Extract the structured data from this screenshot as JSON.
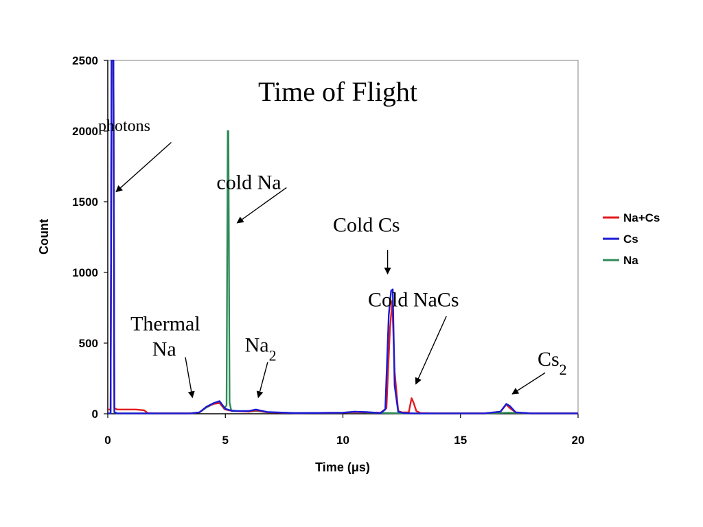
{
  "chart_data": {
    "type": "line",
    "title": "Time of Flight",
    "xlabel": "Time (μs)",
    "ylabel": "Count",
    "xlim": [
      0,
      20
    ],
    "ylim": [
      0,
      2500
    ],
    "xticks": [
      "0",
      "5",
      "10",
      "15",
      "20"
    ],
    "yticks": [
      "0",
      "500",
      "1000",
      "1500",
      "2000",
      "2500"
    ],
    "grid": false,
    "legend_position": "right",
    "series": [
      {
        "name": "Na+Cs",
        "color": "#e41a1c",
        "x": [
          0,
          0.12,
          0.16,
          0.2,
          0.24,
          0.28,
          0.4,
          0.8,
          1.2,
          1.55,
          1.7,
          2.0,
          3.5,
          3.9,
          4.2,
          4.5,
          4.75,
          5.0,
          5.3,
          6.0,
          6.3,
          6.8,
          8.0,
          10.0,
          10.5,
          11.0,
          11.6,
          11.85,
          12.0,
          12.1,
          12.2,
          12.35,
          12.5,
          12.8,
          12.92,
          13.0,
          13.12,
          13.3,
          14.0,
          16.0,
          16.7,
          16.95,
          17.1,
          17.35,
          18.0,
          20.0
        ],
        "values": [
          30,
          30,
          2500,
          2500,
          2500,
          40,
          30,
          30,
          30,
          25,
          5,
          3,
          3,
          10,
          50,
          70,
          75,
          30,
          20,
          15,
          25,
          10,
          5,
          8,
          12,
          10,
          8,
          40,
          600,
          800,
          300,
          20,
          10,
          10,
          110,
          80,
          20,
          5,
          3,
          3,
          15,
          65,
          40,
          10,
          3,
          3
        ]
      },
      {
        "name": "Cs",
        "color": "#1a1ad6",
        "x": [
          0,
          0.12,
          0.16,
          0.2,
          0.24,
          0.28,
          0.4,
          2.0,
          3.5,
          3.9,
          4.2,
          4.5,
          4.75,
          5.0,
          5.3,
          6.0,
          6.3,
          6.8,
          8.0,
          10.0,
          10.5,
          11.0,
          11.6,
          11.8,
          11.95,
          12.05,
          12.12,
          12.2,
          12.35,
          12.6,
          13.0,
          14.0,
          16.0,
          16.7,
          16.95,
          17.1,
          17.35,
          18.0,
          20.0
        ],
        "values": [
          3,
          3,
          2500,
          2500,
          2500,
          10,
          3,
          3,
          3,
          10,
          50,
          75,
          90,
          35,
          20,
          20,
          30,
          12,
          5,
          8,
          15,
          12,
          5,
          30,
          700,
          870,
          880,
          200,
          15,
          5,
          3,
          3,
          3,
          15,
          70,
          55,
          10,
          3,
          3
        ]
      },
      {
        "name": "Na",
        "color": "#2e8b57",
        "x": [
          0,
          0.12,
          0.16,
          0.2,
          0.24,
          0.28,
          0.4,
          2.0,
          3.5,
          3.9,
          4.2,
          4.5,
          4.75,
          4.95,
          5.05,
          5.1,
          5.13,
          5.18,
          5.25,
          5.5,
          6.0,
          6.3,
          6.8,
          8.0,
          10.0,
          10.5,
          11.0,
          12.0,
          13.0,
          16.0,
          17.0,
          18.0,
          20.0
        ],
        "values": [
          3,
          3,
          2500,
          2500,
          2500,
          10,
          3,
          3,
          3,
          10,
          45,
          70,
          80,
          35,
          60,
          2000,
          2000,
          80,
          25,
          20,
          15,
          20,
          10,
          5,
          8,
          15,
          8,
          5,
          3,
          3,
          8,
          3,
          3
        ]
      }
    ],
    "annotations": [
      {
        "text": "photons",
        "x": 0.7,
        "y": 2000
      },
      {
        "text": "cold Na",
        "x": 6.0,
        "y": 1590
      },
      {
        "text": "Cold Cs",
        "x": 11.0,
        "y": 1290
      },
      {
        "text": "Cold NaCs",
        "x": 13.0,
        "y": 760,
        "color": "#e41a1c"
      },
      {
        "text": "Thermal",
        "x": 2.45,
        "y": 590
      },
      {
        "text": "Na",
        "x": 2.4,
        "y": 410
      },
      {
        "text": "Na",
        "sub": "2",
        "x": 6.5,
        "y": 440
      },
      {
        "text": "Cs",
        "sub": "2",
        "x": 18.9,
        "y": 340
      }
    ],
    "arrows": [
      {
        "from": [
          2.7,
          1920
        ],
        "to": [
          0.35,
          1570
        ]
      },
      {
        "from": [
          7.6,
          1600
        ],
        "to": [
          5.5,
          1350
        ]
      },
      {
        "from": [
          11.9,
          1160
        ],
        "to": [
          11.9,
          990
        ]
      },
      {
        "from": [
          14.4,
          690
        ],
        "to": [
          13.1,
          210
        ]
      },
      {
        "from": [
          3.3,
          400
        ],
        "to": [
          3.6,
          115
        ]
      },
      {
        "from": [
          6.8,
          365
        ],
        "to": [
          6.4,
          115
        ]
      },
      {
        "from": [
          18.6,
          290
        ],
        "to": [
          17.2,
          140
        ]
      }
    ]
  }
}
